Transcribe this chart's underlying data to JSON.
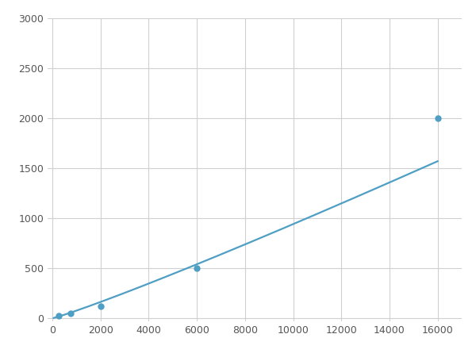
{
  "x": [
    250,
    750,
    2000,
    6000,
    16000
  ],
  "y": [
    22,
    50,
    120,
    500,
    2000
  ],
  "line_color": "#4f9ec4",
  "marker_color": "#4f9ec4",
  "marker_size": 5,
  "marker_style": "o",
  "xlim": [
    -200,
    17000
  ],
  "ylim": [
    -30,
    3000
  ],
  "xticks": [
    0,
    2000,
    4000,
    6000,
    8000,
    10000,
    12000,
    14000,
    16000
  ],
  "yticks": [
    0,
    500,
    1000,
    1500,
    2000,
    2500,
    3000
  ],
  "grid_color": "#d0d0d0",
  "background_color": "#ffffff",
  "figure_background": "#ffffff",
  "linewidth": 1.6
}
